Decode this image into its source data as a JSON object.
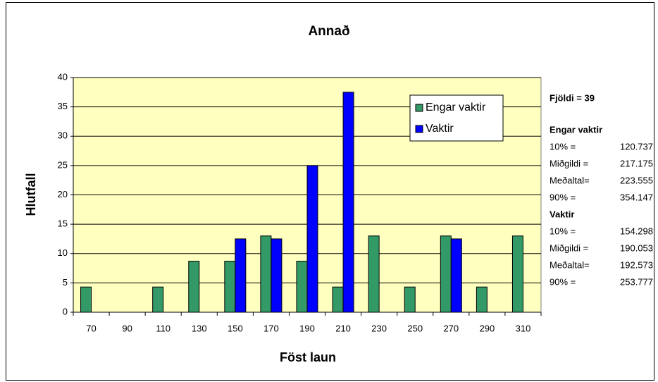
{
  "chart_data": {
    "type": "bar",
    "title": "Annað",
    "x_label": "Föst laun",
    "y_label": "Hlutfall",
    "categories": [
      "70",
      "90",
      "110",
      "130",
      "150",
      "170",
      "190",
      "210",
      "230",
      "250",
      "270",
      "290",
      "310"
    ],
    "series": [
      {
        "name": "Engar vaktir",
        "color": "#339966",
        "values": [
          4.3,
          0,
          4.3,
          8.7,
          8.7,
          13,
          8.7,
          4.3,
          13,
          4.3,
          13,
          4.3,
          13
        ]
      },
      {
        "name": "Vaktir",
        "color": "#0000ff",
        "values": [
          0,
          0,
          0,
          0,
          12.5,
          12.5,
          25,
          37.5,
          0,
          0,
          12.5,
          0,
          0
        ]
      }
    ],
    "ylim": [
      0,
      40
    ],
    "yticks": [
      0,
      5,
      10,
      15,
      20,
      25,
      30,
      35,
      40
    ],
    "grid": true,
    "legend": "upper right",
    "stats": {
      "count": "Fjöldi = 39",
      "groups": [
        {
          "name": "Engar vaktir",
          "rows": [
            {
              "label": "10% =",
              "value": 120.737
            },
            {
              "label": "Miðgildi =",
              "value": 217.175
            },
            {
              "label": "Meðaltal=",
              "value": 223.555
            },
            {
              "label": "90% =",
              "value": 354.147
            }
          ]
        },
        {
          "name": "Vaktir",
          "rows": [
            {
              "label": "10% =",
              "value": 154.298
            },
            {
              "label": "Miðgildi =",
              "value": 190.053
            },
            {
              "label": "Meðaltal=",
              "value": 192.573
            },
            {
              "label": "90% =",
              "value": 253.777
            }
          ]
        }
      ]
    }
  }
}
